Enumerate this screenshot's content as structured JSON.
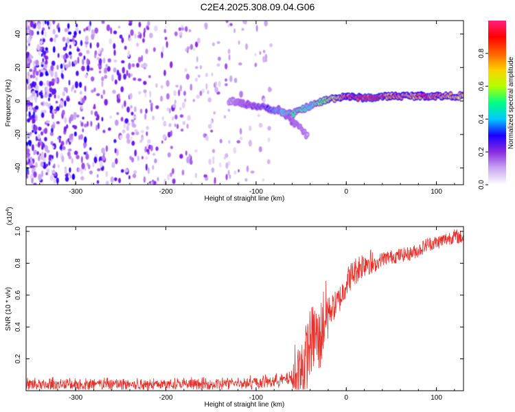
{
  "title": "C2E4.2025.308.09.04.G06",
  "chart_data": [
    {
      "type": "heatmap",
      "xlabel": "Height of straight line (km)",
      "ylabel": "Frequency (Hz)",
      "xlim": [
        -355,
        130
      ],
      "ylim": [
        -50,
        48
      ],
      "xticks": [
        -300,
        -200,
        -100,
        0,
        100
      ],
      "yticks": [
        -40,
        -20,
        0,
        20,
        40
      ],
      "colorbar": {
        "label": "Normalized spectral amplitude",
        "ticks": [
          0.0,
          0.2,
          0.4,
          0.6,
          0.8
        ],
        "range": [
          0,
          1
        ],
        "colormap": [
          "#ffffff",
          "#c9a8f0",
          "#8a2be2",
          "#1a00ff",
          "#00c8ff",
          "#00ff80",
          "#b4ff00",
          "#ffd000",
          "#ff6000",
          "#ff0000",
          "#ff2080"
        ]
      },
      "noise_region_x": [
        -355,
        -80
      ],
      "signal_track": {
        "x": [
          -130,
          -110,
          -90,
          -75,
          -60,
          -50,
          -40,
          -30,
          -20,
          -10,
          0,
          10,
          30,
          50,
          70,
          90,
          110,
          130
        ],
        "freq": [
          0,
          -2,
          -4,
          -6,
          -8,
          -5,
          -3,
          -1,
          1,
          2,
          3,
          2,
          2,
          3,
          3,
          3,
          3,
          3
        ],
        "amplitude": [
          0.1,
          0.2,
          0.3,
          0.4,
          0.5,
          0.5,
          0.45,
          0.55,
          0.65,
          0.75,
          0.85,
          0.9,
          0.95,
          0.85,
          0.8,
          0.9,
          0.8,
          0.75
        ]
      },
      "branch_track": {
        "x": [
          -75,
          -65,
          -55,
          -48,
          -42
        ],
        "freq": [
          -5,
          -10,
          -14,
          -18,
          -22
        ],
        "amplitude": [
          0.2,
          0.2,
          0.15,
          0.15,
          0.1
        ]
      }
    },
    {
      "type": "line",
      "xlabel": "Height of straight line (km)",
      "ylabel": "SNR (10 * v/v)",
      "y_multiplier": "(x10",
      "y_multiplier_exp": "4",
      "y_multiplier_close": ")",
      "xlim": [
        -355,
        130
      ],
      "ylim": [
        0,
        1.03
      ],
      "xticks": [
        -300,
        -200,
        -100,
        0,
        100
      ],
      "yticks": [
        0.2,
        0.4,
        0.6,
        0.8,
        1.0
      ],
      "series": [
        {
          "color": "#e8302a",
          "x": [
            -355,
            -300,
            -250,
            -200,
            -150,
            -100,
            -80,
            -60,
            -50,
            -45,
            -40,
            -35,
            -30,
            -25,
            -20,
            -15,
            -10,
            -5,
            0,
            5,
            10,
            15,
            20,
            25,
            30,
            40,
            50,
            60,
            70,
            80,
            90,
            100,
            110,
            120,
            130
          ],
          "values": [
            0.04,
            0.04,
            0.04,
            0.04,
            0.04,
            0.05,
            0.06,
            0.08,
            0.12,
            0.2,
            0.3,
            0.35,
            0.3,
            0.45,
            0.5,
            0.52,
            0.55,
            0.6,
            0.68,
            0.72,
            0.75,
            0.78,
            0.8,
            0.82,
            0.78,
            0.83,
            0.84,
            0.85,
            0.86,
            0.88,
            0.92,
            0.93,
            0.95,
            0.97,
            0.96
          ]
        }
      ]
    }
  ]
}
